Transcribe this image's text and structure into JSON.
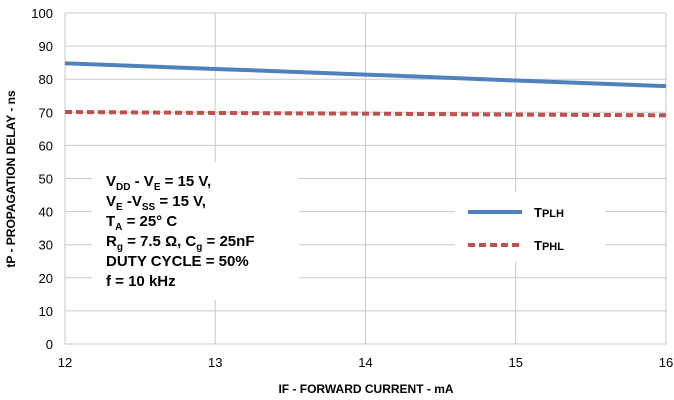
{
  "chart_data": {
    "type": "line",
    "title": "",
    "xlabel": "IF - FORWARD CURRENT - mA",
    "ylabel": "tP - PROPAGATION DELAY - ns",
    "xlim": [
      12,
      16
    ],
    "ylim": [
      0,
      100
    ],
    "x_ticks": [
      "12",
      "13",
      "14",
      "15",
      "16"
    ],
    "y_ticks": [
      "0",
      "10",
      "20",
      "30",
      "40",
      "50",
      "60",
      "70",
      "80",
      "90",
      "100"
    ],
    "grid": "horizontal",
    "legend_position": "right",
    "series": [
      {
        "name_main": "T",
        "name_sub": "PLH",
        "color": "#4F81BD",
        "dash": "solid",
        "x": [
          12,
          13,
          14,
          15,
          16
        ],
        "values": [
          84.8,
          83.1,
          81.4,
          79.6,
          77.9
        ]
      },
      {
        "name_main": "T",
        "name_sub": "PHL",
        "color": "#C0504D",
        "dash": "dashed",
        "x": [
          12,
          13,
          14,
          15,
          16
        ],
        "values": [
          70.1,
          69.8,
          69.6,
          69.3,
          69.1
        ]
      }
    ],
    "annotation": {
      "line1_a": "V",
      "line1_a_sub": "DD",
      "line1_b": " - V",
      "line1_b_sub": "E",
      "line1_c": " = 15 V,",
      "line2_a": "V",
      "line2_a_sub": "E",
      "line2_b": " -V",
      "line2_b_sub": "SS",
      "line2_c": " = 15 V,",
      "line3_a": "T",
      "line3_a_sub": "A",
      "line3_c": " = 25°  C",
      "line4_a": "R",
      "line4_a_sub": "g",
      "line4_b": " = 7.5 Ω, C",
      "line4_b_sub": "g",
      "line4_c": " = 25nF",
      "line5": "DUTY CYCLE = 50%",
      "line6": "f = 10 kHz"
    }
  }
}
